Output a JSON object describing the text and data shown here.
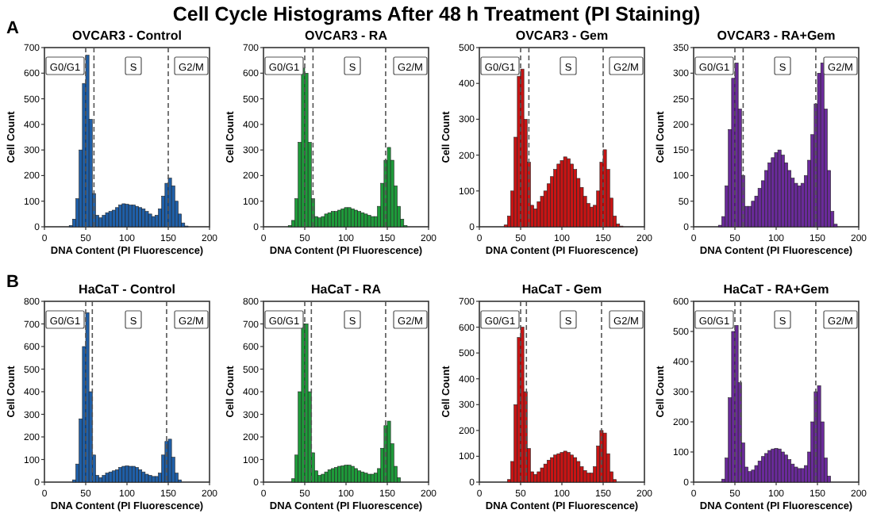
{
  "chart_data": [
    {
      "type": "histogram",
      "title": "OVCAR3 - Control",
      "xlabel": "DNA Content (PI Fluorescence)",
      "ylabel": "Cell Count",
      "annotations": [
        "Cell Cycle Histograms After 48 h Treatment (PI Staining)",
        "A",
        "G0/G1",
        "S",
        "G2/M"
      ],
      "color": "#1f5fa8",
      "xlim": [
        0,
        200
      ],
      "xticks": [
        0,
        50,
        100,
        150,
        200
      ],
      "ylim": [
        0,
        700
      ],
      "yticks": [
        0,
        100,
        200,
        300,
        400,
        500,
        600,
        700
      ],
      "bins": [
        30,
        34,
        38,
        42,
        46,
        50,
        54,
        58,
        62,
        66,
        70,
        74,
        78,
        82,
        86,
        90,
        94,
        98,
        102,
        106,
        110,
        114,
        118,
        122,
        126,
        130,
        134,
        138,
        142,
        146,
        150,
        154,
        158,
        162,
        166,
        170,
        174
      ],
      "values": [
        5,
        30,
        110,
        300,
        560,
        670,
        420,
        130,
        45,
        35,
        45,
        55,
        60,
        65,
        75,
        85,
        90,
        88,
        85,
        85,
        80,
        75,
        70,
        60,
        50,
        40,
        45,
        70,
        120,
        170,
        190,
        160,
        100,
        50,
        15,
        3
      ],
      "ref_lines": [
        {
          "axis": "x",
          "value": 50,
          "color": "#555555",
          "line_style": "dashed"
        },
        {
          "axis": "x",
          "value": 60,
          "color": "#555555",
          "line_style": "dashed"
        },
        {
          "axis": "x",
          "value": 150,
          "color": "#555555",
          "line_style": "dashed"
        }
      ]
    },
    {
      "type": "histogram",
      "title": "OVCAR3 - RA",
      "xlabel": "DNA Content (PI Fluorescence)",
      "ylabel": "Cell Count",
      "annotations": [
        "G0/G1",
        "S",
        "G2/M"
      ],
      "color": "#1e9a3a",
      "xlim": [
        0,
        200
      ],
      "xticks": [
        0,
        50,
        100,
        150,
        200
      ],
      "ylim": [
        0,
        700
      ],
      "yticks": [
        0,
        100,
        200,
        300,
        400,
        500,
        600,
        700
      ],
      "bins": [
        30,
        34,
        38,
        42,
        46,
        50,
        54,
        58,
        62,
        66,
        70,
        74,
        78,
        82,
        86,
        90,
        94,
        98,
        102,
        106,
        110,
        114,
        118,
        122,
        126,
        130,
        134,
        138,
        142,
        146,
        150,
        154,
        158,
        162,
        166,
        170,
        174
      ],
      "values": [
        5,
        25,
        110,
        330,
        620,
        600,
        330,
        110,
        40,
        35,
        40,
        50,
        55,
        60,
        60,
        65,
        70,
        75,
        75,
        70,
        65,
        60,
        55,
        50,
        45,
        40,
        40,
        80,
        170,
        260,
        310,
        260,
        160,
        80,
        30,
        5
      ],
      "ref_lines": [
        {
          "axis": "x",
          "value": 50,
          "color": "#555555",
          "line_style": "dashed"
        },
        {
          "axis": "x",
          "value": 60,
          "color": "#555555",
          "line_style": "dashed"
        },
        {
          "axis": "x",
          "value": 148,
          "color": "#555555",
          "line_style": "dashed"
        }
      ]
    },
    {
      "type": "histogram",
      "title": "OVCAR3 - Gem",
      "xlabel": "DNA Content (PI Fluorescence)",
      "ylabel": "Cell Count",
      "annotations": [
        "G0/G1",
        "S",
        "G2/M"
      ],
      "color": "#c81414",
      "xlim": [
        0,
        200
      ],
      "xticks": [
        0,
        50,
        100,
        150,
        200
      ],
      "ylim": [
        0,
        500
      ],
      "yticks": [
        0,
        100,
        200,
        300,
        400,
        500
      ],
      "bins": [
        30,
        34,
        38,
        42,
        46,
        50,
        54,
        58,
        62,
        66,
        70,
        74,
        78,
        82,
        86,
        90,
        94,
        98,
        102,
        106,
        110,
        114,
        118,
        122,
        126,
        130,
        134,
        138,
        142,
        146,
        150,
        154,
        158,
        162,
        166,
        170,
        174
      ],
      "values": [
        5,
        30,
        100,
        250,
        420,
        440,
        300,
        180,
        60,
        50,
        70,
        85,
        100,
        120,
        140,
        160,
        175,
        185,
        195,
        190,
        175,
        160,
        135,
        110,
        85,
        65,
        55,
        60,
        100,
        180,
        215,
        160,
        80,
        30,
        8,
        2
      ],
      "ref_lines": [
        {
          "axis": "x",
          "value": 50,
          "color": "#555555",
          "line_style": "dashed"
        },
        {
          "axis": "x",
          "value": 60,
          "color": "#555555",
          "line_style": "dashed"
        },
        {
          "axis": "x",
          "value": 150,
          "color": "#555555",
          "line_style": "dashed"
        }
      ]
    },
    {
      "type": "histogram",
      "title": "OVCAR3 - RA+Gem",
      "xlabel": "DNA Content (PI Fluorescence)",
      "ylabel": "Cell Count",
      "annotations": [
        "G0/G1",
        "S",
        "G2/M"
      ],
      "color": "#6a2a9a",
      "xlim": [
        0,
        200
      ],
      "xticks": [
        0,
        50,
        100,
        150,
        200
      ],
      "ylim": [
        0,
        350
      ],
      "yticks": [
        0,
        50,
        100,
        150,
        200,
        250,
        300,
        350
      ],
      "bins": [
        30,
        34,
        38,
        42,
        46,
        50,
        54,
        58,
        62,
        66,
        70,
        74,
        78,
        82,
        86,
        90,
        94,
        98,
        102,
        106,
        110,
        114,
        118,
        122,
        126,
        130,
        134,
        138,
        142,
        146,
        150,
        154,
        158,
        162,
        166,
        170,
        174
      ],
      "values": [
        3,
        20,
        80,
        190,
        290,
        320,
        230,
        100,
        40,
        40,
        50,
        60,
        75,
        90,
        110,
        125,
        135,
        145,
        150,
        140,
        125,
        110,
        95,
        85,
        80,
        85,
        100,
        130,
        180,
        240,
        300,
        320,
        230,
        110,
        30,
        5
      ],
      "ref_lines": [
        {
          "axis": "x",
          "value": 50,
          "color": "#555555",
          "line_style": "dashed"
        },
        {
          "axis": "x",
          "value": 60,
          "color": "#555555",
          "line_style": "dashed"
        },
        {
          "axis": "x",
          "value": 148,
          "color": "#555555",
          "line_style": "dashed"
        }
      ]
    },
    {
      "type": "histogram",
      "title": "HaCaT - Control",
      "xlabel": "DNA Content (PI Fluorescence)",
      "ylabel": "Cell Count",
      "annotations": [
        "B",
        "G0/G1",
        "S",
        "G2/M"
      ],
      "color": "#1f5fa8",
      "xlim": [
        0,
        200
      ],
      "xticks": [
        0,
        50,
        100,
        150,
        200
      ],
      "ylim": [
        0,
        800
      ],
      "yticks": [
        0,
        100,
        200,
        300,
        400,
        500,
        600,
        700,
        800
      ],
      "bins": [
        34,
        38,
        42,
        46,
        50,
        54,
        58,
        62,
        66,
        70,
        74,
        78,
        82,
        86,
        90,
        94,
        98,
        102,
        106,
        110,
        114,
        118,
        122,
        126,
        130,
        134,
        138,
        142,
        146,
        150,
        154,
        158,
        162,
        166
      ],
      "values": [
        10,
        80,
        280,
        600,
        750,
        400,
        120,
        30,
        20,
        30,
        40,
        45,
        50,
        55,
        65,
        70,
        72,
        70,
        70,
        65,
        55,
        45,
        35,
        30,
        25,
        25,
        40,
        120,
        180,
        190,
        110,
        40,
        10
      ],
      "ref_lines": [
        {
          "axis": "x",
          "value": 50,
          "color": "#555555",
          "line_style": "dashed"
        },
        {
          "axis": "x",
          "value": 58,
          "color": "#555555",
          "line_style": "dashed"
        },
        {
          "axis": "x",
          "value": 148,
          "color": "#555555",
          "line_style": "dashed"
        }
      ]
    },
    {
      "type": "histogram",
      "title": "HaCaT - RA",
      "xlabel": "DNA Content (PI Fluorescence)",
      "ylabel": "Cell Count",
      "annotations": [
        "G0/G1",
        "S",
        "G2/M"
      ],
      "color": "#1e9a3a",
      "xlim": [
        0,
        200
      ],
      "xticks": [
        0,
        50,
        100,
        150,
        200
      ],
      "ylim": [
        0,
        800
      ],
      "yticks": [
        0,
        100,
        200,
        300,
        400,
        500,
        600,
        700,
        800
      ],
      "bins": [
        34,
        38,
        42,
        46,
        50,
        54,
        58,
        62,
        66,
        70,
        74,
        78,
        82,
        86,
        90,
        94,
        98,
        102,
        106,
        110,
        114,
        118,
        122,
        126,
        130,
        134,
        138,
        142,
        146,
        150,
        154,
        158,
        162,
        166
      ],
      "values": [
        15,
        120,
        400,
        700,
        700,
        400,
        130,
        50,
        30,
        35,
        45,
        55,
        60,
        65,
        70,
        72,
        75,
        75,
        70,
        60,
        50,
        45,
        40,
        35,
        35,
        40,
        60,
        150,
        250,
        270,
        170,
        70,
        20
      ],
      "ref_lines": [
        {
          "axis": "x",
          "value": 50,
          "color": "#555555",
          "line_style": "dashed"
        },
        {
          "axis": "x",
          "value": 58,
          "color": "#555555",
          "line_style": "dashed"
        },
        {
          "axis": "x",
          "value": 148,
          "color": "#555555",
          "line_style": "dashed"
        }
      ]
    },
    {
      "type": "histogram",
      "title": "HaCaT - Gem",
      "xlabel": "DNA Content (PI Fluorescence)",
      "ylabel": "Cell Count",
      "annotations": [
        "G0/G1",
        "S",
        "G2/M"
      ],
      "color": "#c81414",
      "xlim": [
        0,
        200
      ],
      "xticks": [
        0,
        50,
        100,
        150,
        200
      ],
      "ylim": [
        0,
        700
      ],
      "yticks": [
        0,
        100,
        200,
        300,
        400,
        500,
        600,
        700
      ],
      "bins": [
        34,
        38,
        42,
        46,
        50,
        54,
        58,
        62,
        66,
        70,
        74,
        78,
        82,
        86,
        90,
        94,
        98,
        102,
        106,
        110,
        114,
        118,
        122,
        126,
        130,
        134,
        138,
        142,
        146,
        150,
        154,
        158,
        162,
        166
      ],
      "values": [
        10,
        80,
        300,
        560,
        600,
        350,
        130,
        40,
        30,
        40,
        55,
        70,
        85,
        95,
        105,
        110,
        115,
        120,
        115,
        105,
        95,
        80,
        60,
        45,
        35,
        35,
        60,
        140,
        200,
        190,
        110,
        40,
        10
      ],
      "ref_lines": [
        {
          "axis": "x",
          "value": 50,
          "color": "#555555",
          "line_style": "dashed"
        },
        {
          "axis": "x",
          "value": 57,
          "color": "#555555",
          "line_style": "dashed"
        },
        {
          "axis": "x",
          "value": 148,
          "color": "#555555",
          "line_style": "dashed"
        }
      ]
    },
    {
      "type": "histogram",
      "title": "HaCaT - RA+Gem",
      "xlabel": "DNA Content (PI Fluorescence)",
      "ylabel": "Cell Count",
      "annotations": [
        "G0/G1",
        "S",
        "G2/M"
      ],
      "color": "#6a2a9a",
      "xlim": [
        0,
        200
      ],
      "xticks": [
        0,
        50,
        100,
        150,
        200
      ],
      "ylim": [
        0,
        600
      ],
      "yticks": [
        0,
        100,
        200,
        300,
        400,
        500,
        600
      ],
      "bins": [
        34,
        38,
        42,
        46,
        50,
        54,
        58,
        62,
        66,
        70,
        74,
        78,
        82,
        86,
        90,
        94,
        98,
        102,
        106,
        110,
        114,
        118,
        122,
        126,
        130,
        134,
        138,
        142,
        146,
        150,
        154,
        158,
        162,
        166
      ],
      "values": [
        10,
        80,
        280,
        500,
        520,
        330,
        130,
        50,
        35,
        40,
        55,
        70,
        85,
        95,
        105,
        110,
        112,
        110,
        100,
        90,
        75,
        60,
        50,
        45,
        45,
        55,
        100,
        200,
        300,
        320,
        200,
        80,
        20
      ],
      "ref_lines": [
        {
          "axis": "x",
          "value": 50,
          "color": "#555555",
          "line_style": "dashed"
        },
        {
          "axis": "x",
          "value": 57,
          "color": "#555555",
          "line_style": "dashed"
        },
        {
          "axis": "x",
          "value": 148,
          "color": "#555555",
          "line_style": "dashed"
        }
      ]
    }
  ]
}
